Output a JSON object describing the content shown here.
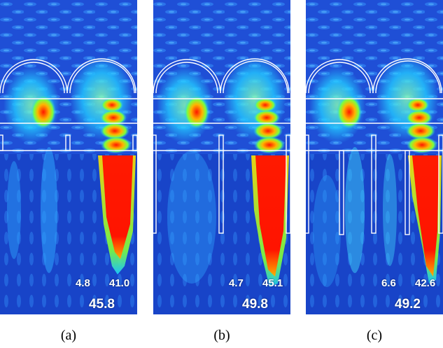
{
  "panels": [
    {
      "caption": "(a)",
      "left_value": "4.8",
      "right_value": "41.0",
      "total_value": "45.8"
    },
    {
      "caption": "(b)",
      "left_value": "4.7",
      "right_value": "45.1",
      "total_value": "49.8"
    },
    {
      "caption": "(c)",
      "left_value": "6.6",
      "right_value": "42.6",
      "total_value": "49.2"
    }
  ]
}
